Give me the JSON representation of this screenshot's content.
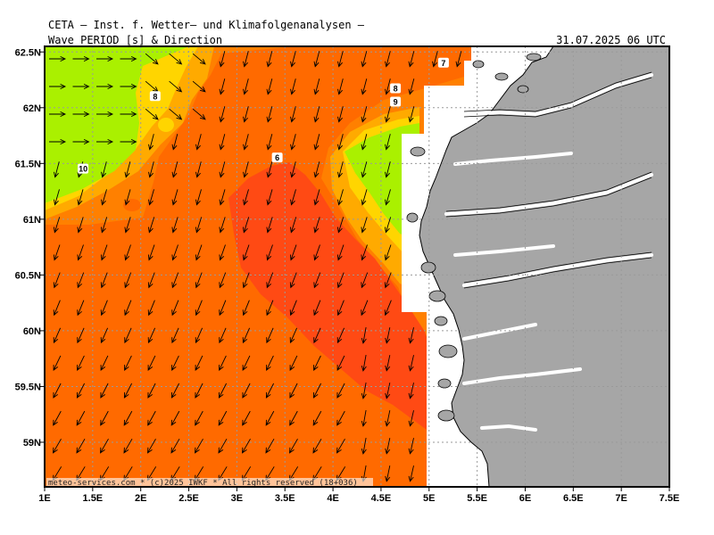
{
  "header": {
    "institute": "CETA — Inst. f. Wetter— und Klimafolgenanalysen —",
    "parameter": "Wave_PERIOD_[s]_&_Direction",
    "valid_time": "31.07.2025 06 UTC"
  },
  "map": {
    "lon_range": [
      1,
      7.5
    ],
    "lat_range": [
      58.6,
      62.55
    ],
    "lon_ticks": [
      {
        "value": 1,
        "label": "1E"
      },
      {
        "value": 1.5,
        "label": "1.5E"
      },
      {
        "value": 2,
        "label": "2E"
      },
      {
        "value": 2.5,
        "label": "2.5E"
      },
      {
        "value": 3,
        "label": "3E"
      },
      {
        "value": 3.5,
        "label": "3.5E"
      },
      {
        "value": 4,
        "label": "4E"
      },
      {
        "value": 4.5,
        "label": "4.5E"
      },
      {
        "value": 5,
        "label": "5E"
      },
      {
        "value": 5.5,
        "label": "5.5E"
      },
      {
        "value": 6,
        "label": "6E"
      },
      {
        "value": 6.5,
        "label": "6.5E"
      },
      {
        "value": 7,
        "label": "7E"
      },
      {
        "value": 7.5,
        "label": "7.5E"
      }
    ],
    "lat_ticks": [
      {
        "value": 62.5,
        "label": "62.5N"
      },
      {
        "value": 62,
        "label": "62N"
      },
      {
        "value": 61.5,
        "label": "61.5N"
      },
      {
        "value": 61,
        "label": "61N"
      },
      {
        "value": 60.5,
        "label": "60.5N"
      },
      {
        "value": 60,
        "label": "60N"
      },
      {
        "value": 59.5,
        "label": "59.5N"
      },
      {
        "value": 59,
        "label": "59N"
      }
    ],
    "contour_labels": [
      {
        "text": "10",
        "lon": 1.4,
        "lat": 61.45
      },
      {
        "text": "8",
        "lon": 2.15,
        "lat": 62.1
      },
      {
        "text": "6",
        "lon": 3.42,
        "lat": 61.55
      },
      {
        "text": "8",
        "lon": 4.65,
        "lat": 62.17
      },
      {
        "text": "9",
        "lon": 4.65,
        "lat": 62.05
      },
      {
        "text": "7",
        "lon": 5.15,
        "lat": 62.4
      }
    ],
    "copyright": "meteo-services.com * (c)2025 IWKF * All rights reserved (18+036)"
  },
  "colors": {
    "period_10_plus": "#aaf000",
    "period_9_10": "#ffd500",
    "period_8_9": "#ffaa00",
    "period_7_8": "#ff8000",
    "period_6_7": "#ff6a00",
    "period_below_6": "#ff4a14",
    "land": "#a6a6a6",
    "coastline": "#000000"
  }
}
